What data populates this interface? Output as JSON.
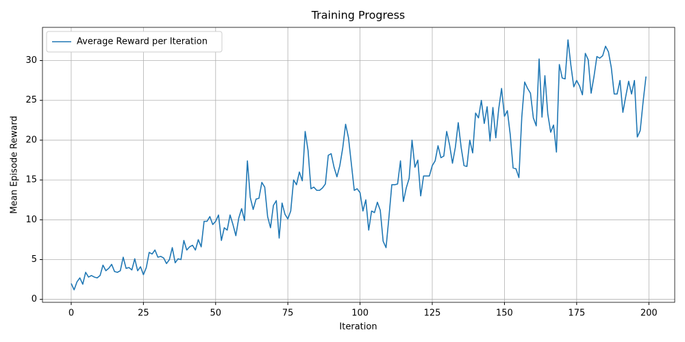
{
  "chart_data": {
    "type": "line",
    "title": "Training Progress",
    "x_label": "Iteration",
    "y_label": "Mean Episode Reward",
    "x": [
      0,
      1,
      2,
      3,
      4,
      5,
      6,
      7,
      8,
      9,
      10,
      11,
      12,
      13,
      14,
      15,
      16,
      17,
      18,
      19,
      20,
      21,
      22,
      23,
      24,
      25,
      26,
      27,
      28,
      29,
      30,
      31,
      32,
      33,
      34,
      35,
      36,
      37,
      38,
      39,
      40,
      41,
      42,
      43,
      44,
      45,
      46,
      47,
      48,
      49,
      50,
      51,
      52,
      53,
      54,
      55,
      56,
      57,
      58,
      59,
      60,
      61,
      62,
      63,
      64,
      65,
      66,
      67,
      68,
      69,
      70,
      71,
      72,
      73,
      74,
      75,
      76,
      77,
      78,
      79,
      80,
      81,
      82,
      83,
      84,
      85,
      86,
      87,
      88,
      89,
      90,
      91,
      92,
      93,
      94,
      95,
      96,
      97,
      98,
      99,
      100,
      101,
      102,
      103,
      104,
      105,
      106,
      107,
      108,
      109,
      110,
      111,
      112,
      113,
      114,
      115,
      116,
      117,
      118,
      119,
      120,
      121,
      122,
      123,
      124,
      125,
      126,
      127,
      128,
      129,
      130,
      131,
      132,
      133,
      134,
      135,
      136,
      137,
      138,
      139,
      140,
      141,
      142,
      143,
      144,
      145,
      146,
      147,
      148,
      149,
      150,
      151,
      152,
      153,
      154,
      155,
      156,
      157,
      158,
      159,
      160,
      161,
      162,
      163,
      164,
      165,
      166,
      167,
      168,
      169,
      170,
      171,
      172,
      173,
      174,
      175,
      176,
      177,
      178,
      179,
      180,
      181,
      182,
      183,
      184,
      185,
      186,
      187,
      188,
      189,
      190,
      191,
      192,
      193,
      194,
      195,
      196,
      197,
      198,
      199
    ],
    "series": [
      {
        "name": "Average Reward per Iteration",
        "color": "#1f77b4",
        "values": [
          2.0,
          1.2,
          2.2,
          2.7,
          1.9,
          3.4,
          2.8,
          3.0,
          2.8,
          2.7,
          3.0,
          4.3,
          3.6,
          3.9,
          4.4,
          3.5,
          3.4,
          3.6,
          5.3,
          3.9,
          4.0,
          3.7,
          5.1,
          3.6,
          4.1,
          3.1,
          4.0,
          5.9,
          5.7,
          6.2,
          5.3,
          5.4,
          5.2,
          4.5,
          5.0,
          6.5,
          4.6,
          5.1,
          5.0,
          7.4,
          6.2,
          6.6,
          6.8,
          6.2,
          7.5,
          6.6,
          9.8,
          9.8,
          10.4,
          9.4,
          9.8,
          10.6,
          7.4,
          9.0,
          8.7,
          10.6,
          9.4,
          8.0,
          10.2,
          11.4,
          9.9,
          17.4,
          12.8,
          11.3,
          12.6,
          12.7,
          14.7,
          14.1,
          10.4,
          9.0,
          11.8,
          12.4,
          7.7,
          12.1,
          10.7,
          10.1,
          11.1,
          15.0,
          14.4,
          16.0,
          14.9,
          21.1,
          18.7,
          13.9,
          14.1,
          13.7,
          13.7,
          14.0,
          14.5,
          18.1,
          18.3,
          16.6,
          15.4,
          16.8,
          19.0,
          22.0,
          20.3,
          17.0,
          13.7,
          13.9,
          13.4,
          11.1,
          12.5,
          8.7,
          11.1,
          10.9,
          12.2,
          11.2,
          7.3,
          6.5,
          10.3,
          14.4,
          14.4,
          14.5,
          17.4,
          12.3,
          14.0,
          15.2,
          20.0,
          16.6,
          17.5,
          13.0,
          15.5,
          15.5,
          15.5,
          16.8,
          17.4,
          19.3,
          17.8,
          18.0,
          21.1,
          19.4,
          17.1,
          19.1,
          22.2,
          19.1,
          16.8,
          16.7,
          20.0,
          18.4,
          23.4,
          22.8,
          25.0,
          22.1,
          24.2,
          19.9,
          24.1,
          20.3,
          23.9,
          26.5,
          23.0,
          23.7,
          20.7,
          16.5,
          16.4,
          15.3,
          22.9,
          27.3,
          26.5,
          25.9,
          22.8,
          21.8,
          30.2,
          22.9,
          28.1,
          23.3,
          21.0,
          21.9,
          18.5,
          29.5,
          27.8,
          27.7,
          32.6,
          29.4,
          26.7,
          27.5,
          26.8,
          25.7,
          30.9,
          30.1,
          25.9,
          28.0,
          30.5,
          30.3,
          30.6,
          31.8,
          31.1,
          29.1,
          25.8,
          25.8,
          27.5,
          23.5,
          25.5,
          27.4,
          25.8,
          27.5,
          20.4,
          21.2,
          24.8,
          28.0
        ]
      }
    ],
    "xlim": [
      -9.95,
      208.95
    ],
    "xticks": [
      0,
      25,
      50,
      75,
      100,
      125,
      150,
      175,
      200
    ],
    "ylim": [
      -0.37,
      34.17
    ],
    "yticks": [
      0,
      5,
      10,
      15,
      20,
      25,
      30
    ],
    "grid": true,
    "legend": "upper left"
  }
}
